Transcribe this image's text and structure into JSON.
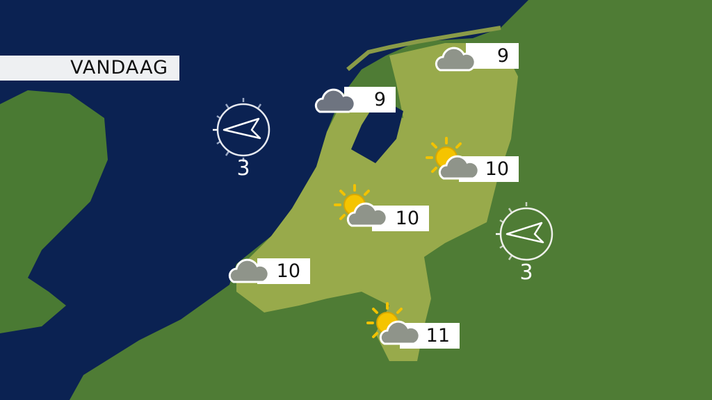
{
  "title": "VANDAAG",
  "colors": {
    "sea": "#0b2252",
    "land": "#4d7a34",
    "netherlands": "#9aab4a",
    "label_bg": "#ffffff",
    "sun": "#f2c200"
  },
  "stations": [
    {
      "temp": "9",
      "icon": "cloud-icon"
    },
    {
      "temp": "9",
      "icon": "dark-cloud-icon"
    },
    {
      "temp": "10",
      "icon": "sun-cloud-icon"
    },
    {
      "temp": "10",
      "icon": "sun-cloud-icon"
    },
    {
      "temp": "10",
      "icon": "cloud-icon"
    },
    {
      "temp": "11",
      "icon": "sun-cloud-icon"
    }
  ],
  "wind": [
    {
      "speed": "3",
      "direction": "wind-arrow-icon"
    },
    {
      "speed": "3",
      "direction": "wind-arrow-icon"
    }
  ]
}
